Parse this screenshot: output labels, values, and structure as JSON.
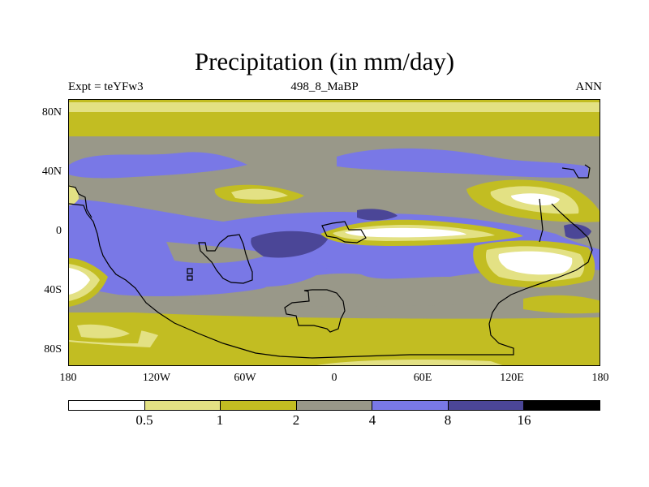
{
  "title": "Precipitation (in mm/day)",
  "subtitle_left": "Expt = teYFw3",
  "subtitle_center": "498_8_MaBP",
  "subtitle_right": "ANN",
  "lat_labels": [
    "80N",
    "40N",
    "0",
    "40S",
    "80S"
  ],
  "lon_labels": [
    "180",
    "120W",
    "60W",
    "0",
    "60E",
    "120E",
    "180"
  ],
  "colorbar": {
    "colors": [
      "#ffffff",
      "#e3e184",
      "#c2bd22",
      "#999889",
      "#7978e6",
      "#4b4697",
      "#000000"
    ],
    "labels": [
      "0.5",
      "1",
      "2",
      "4",
      "8",
      "16"
    ]
  },
  "colors": {
    "white": "#ffffff",
    "pale_yellow": "#e3e184",
    "olive": "#c2bd22",
    "gray": "#999889",
    "blue": "#7978e6",
    "dark_blue": "#4b4697"
  }
}
